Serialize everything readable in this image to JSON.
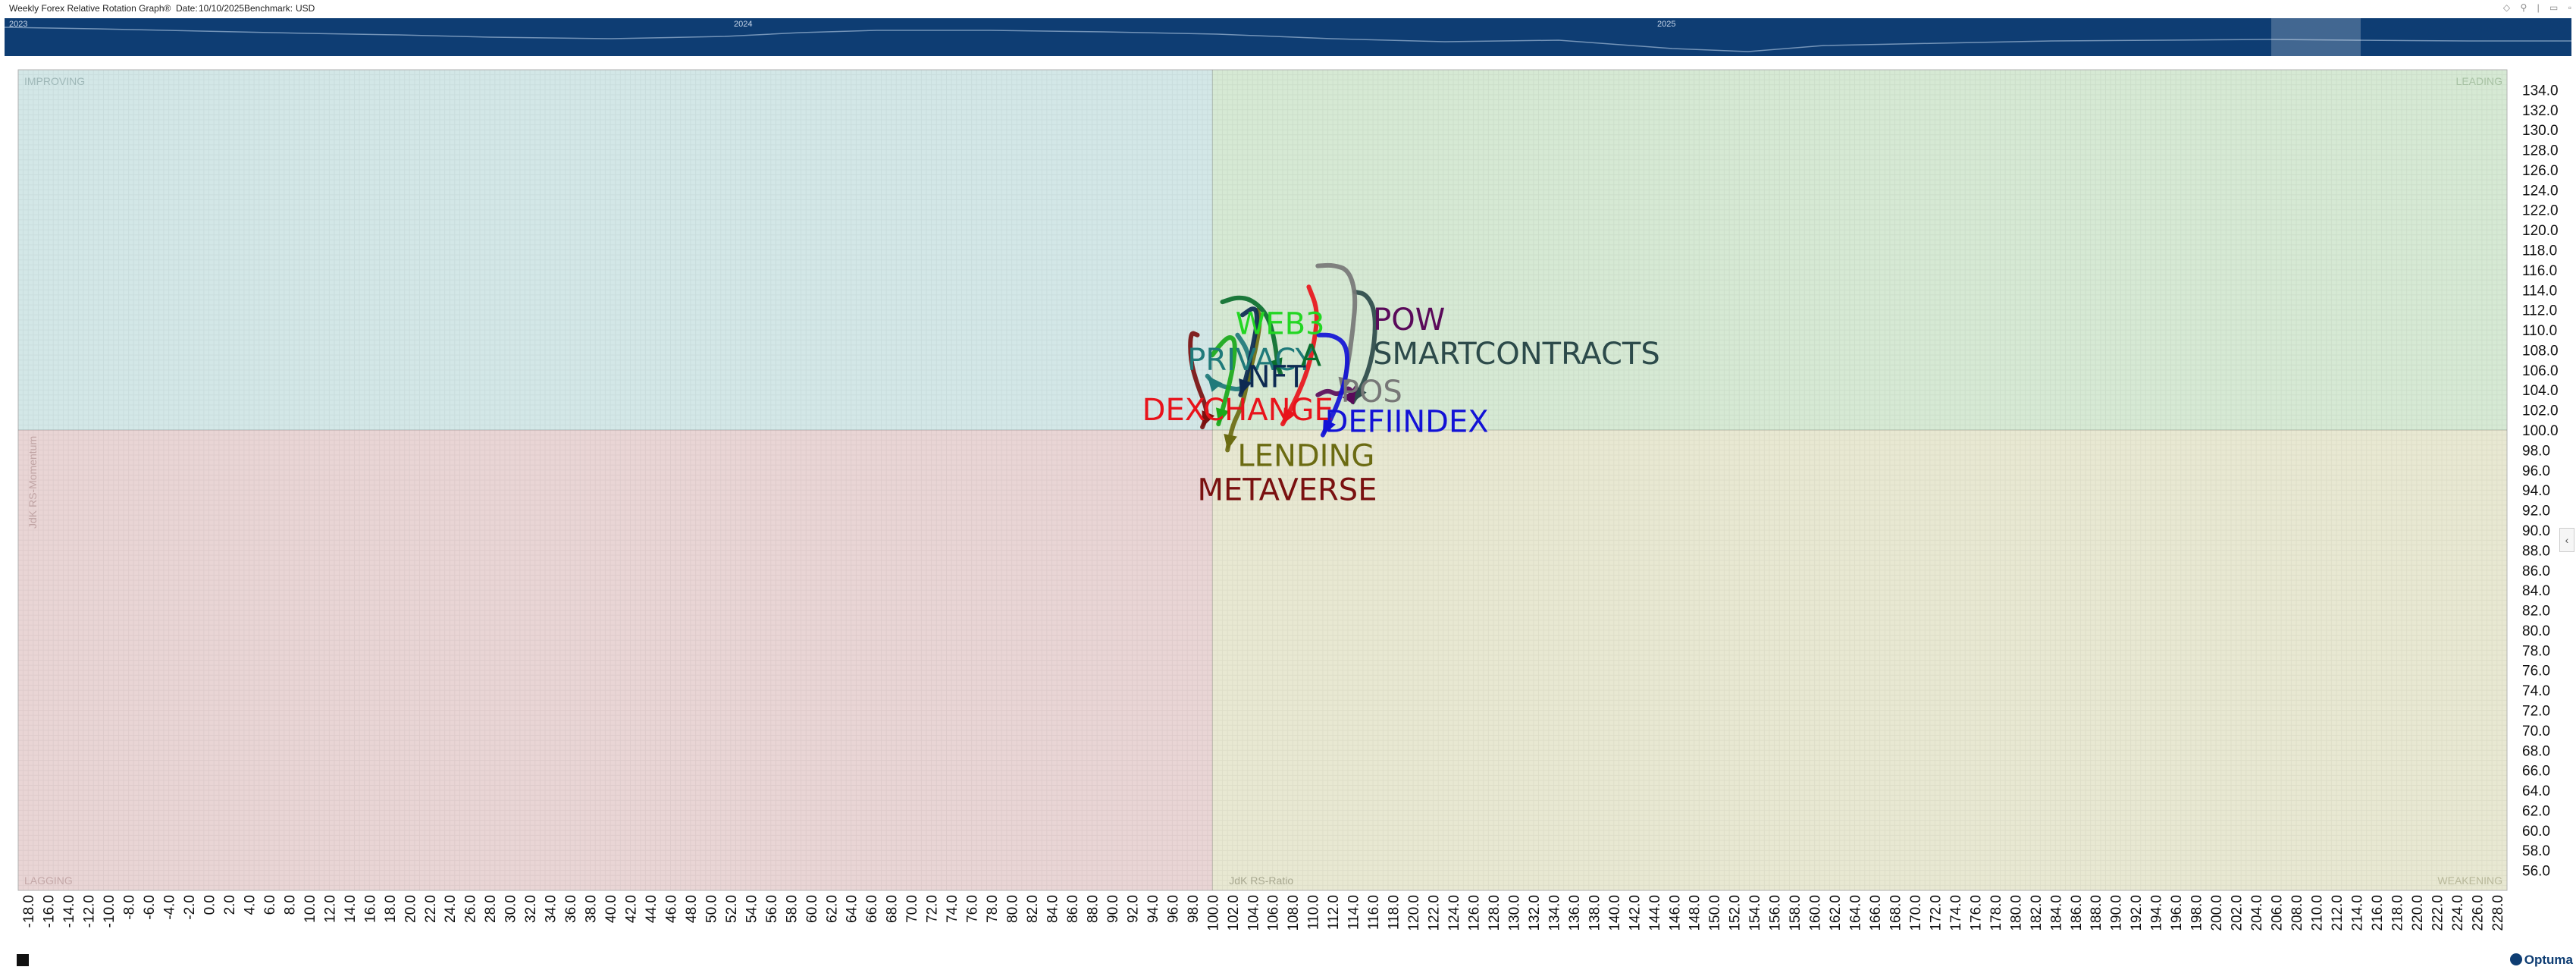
{
  "header": {
    "title": "Weekly Forex Relative Rotation Graph®",
    "date_label": "Date:",
    "date": "10/10/2025",
    "benchmark_label": "Benchmark:",
    "benchmark": "USD"
  },
  "navigator": {
    "years": [
      "2023",
      "2024",
      "2025"
    ]
  },
  "quadrants": {
    "improving": "IMPROVING",
    "leading": "LEADING",
    "lagging": "LAGGING",
    "weakening": "WEAKENING",
    "colors": {
      "improving": "#d3e7e7",
      "leading": "#d6e9d4",
      "lagging": "#e9d5d5",
      "weakening": "#e8e8d2"
    }
  },
  "brand": "Optuma",
  "chart_data": {
    "type": "scatter",
    "subtype": "relative-rotation-graph",
    "xlabel": "JdK RS-Ratio",
    "ylabel": "JdK RS-Momentum",
    "xlim": [
      -19,
      229
    ],
    "ylim": [
      54,
      136
    ],
    "center": [
      100,
      100
    ],
    "x_ticks_step": 2,
    "y_ticks_step": 2,
    "grid": true,
    "series": [
      {
        "name": "PRIVACY",
        "color": "#1f7a7a",
        "x": [
          102.5,
          103.5,
          104.0,
          103.0,
          101.5,
          100.0,
          99.5
        ],
        "y": [
          109.5,
          108.0,
          105.5,
          104.0,
          104.2,
          104.8,
          105.4
        ]
      },
      {
        "name": "DEXCHANGE",
        "color": "#e8131b",
        "x": [
          109.6,
          110.5,
          110.2,
          109.5,
          108.5,
          107.5,
          107.0
        ],
        "y": [
          114.3,
          112.0,
          109.0,
          106.0,
          103.5,
          101.5,
          100.6
        ]
      },
      {
        "name": "METAVERSE",
        "color": "#7a1010",
        "x": [
          98.5,
          97.8,
          97.8,
          98.5,
          99.2,
          99.5,
          99.0
        ],
        "y": [
          109.5,
          109.8,
          107.0,
          104.5,
          102.8,
          101.5,
          100.3
        ]
      },
      {
        "name": "LENDING",
        "color": "#6b6b12",
        "x": [
          104.5,
          104.8,
          104.3,
          103.5,
          103.0,
          102.0,
          101.5
        ],
        "y": [
          112.0,
          111.0,
          108.0,
          105.0,
          102.5,
          100.5,
          98.0
        ]
      },
      {
        "name": "WEB3",
        "color": "#1aa81a",
        "x": [
          100.0,
          101.0,
          101.8,
          102.3,
          102.1,
          101.5,
          100.6
        ],
        "y": [
          107.5,
          108.8,
          109.4,
          108.8,
          106.5,
          103.8,
          100.6
        ]
      },
      {
        "name": "NFT",
        "color": "#0d2a52",
        "x": [
          103.0,
          104.3,
          104.5,
          103.9,
          103.4,
          102.8
        ],
        "y": [
          111.5,
          112.4,
          110.8,
          107.8,
          105.3,
          103.5
        ]
      },
      {
        "name": "A",
        "color": "#0b6e2e",
        "x": [
          101.0,
          102.5,
          104.0,
          105.5,
          106.2,
          106.5,
          106.8
        ],
        "y": [
          112.8,
          113.3,
          113.0,
          111.5,
          109.0,
          106.5,
          105.6
        ]
      },
      {
        "name": "SMARTCONTRACTS",
        "color": "#2c4a4a",
        "x": [
          114.2,
          115.3,
          116.2,
          116.2,
          115.6,
          114.6,
          114.0
        ],
        "y": [
          113.8,
          113.6,
          112.0,
          109.0,
          106.0,
          103.8,
          102.8
        ]
      },
      {
        "name": "POS",
        "color": "#777777",
        "x": [
          110.5,
          112.0,
          113.6,
          114.3,
          114.0,
          113.5,
          112.9
        ],
        "y": [
          116.4,
          116.5,
          116.0,
          113.5,
          110.0,
          106.5,
          103.7
        ]
      },
      {
        "name": "POW",
        "color": "#5a0a5a",
        "x": [
          110.5,
          111.5,
          112.4,
          113.2,
          113.6,
          114.0,
          114.3
        ],
        "y": [
          103.5,
          104.0,
          103.5,
          104.0,
          104.2,
          103.7,
          104.2
        ]
      },
      {
        "name": "DEFIINDEX",
        "color": "#1212d6",
        "x": [
          110.6,
          112.0,
          113.3,
          113.5,
          113.0,
          112.0,
          111.0
        ],
        "y": [
          109.5,
          109.5,
          108.6,
          106.5,
          104.0,
          101.5,
          99.5
        ]
      }
    ],
    "labels": [
      {
        "name": "PRIVACY",
        "color": "#1f7a7a",
        "x": 97.5,
        "y": 106.0
      },
      {
        "name": "DEXCHANGE",
        "color": "#e8131b",
        "x": 93.0,
        "y": 101.0
      },
      {
        "name": "METAVERSE",
        "color": "#7a1010",
        "x": 98.5,
        "y": 93.0
      },
      {
        "name": "LENDING",
        "color": "#6b6b12",
        "x": 102.5,
        "y": 96.4
      },
      {
        "name": "WEB3",
        "color": "#23d623",
        "x": 102.3,
        "y": 109.6
      },
      {
        "name": "NFT",
        "color": "#0d2a52",
        "x": 103.5,
        "y": 104.3
      },
      {
        "name": "A",
        "color": "#0b6e2e",
        "x": 108.8,
        "y": 106.4
      },
      {
        "name": "SMARTCONTRACTS",
        "color": "#2c4a4a",
        "x": 116.0,
        "y": 106.6
      },
      {
        "name": "POS",
        "color": "#777777",
        "x": 112.8,
        "y": 102.8
      },
      {
        "name": "POW",
        "color": "#5a0a5a",
        "x": 116.0,
        "y": 110.0
      },
      {
        "name": "DEFIINDEX",
        "color": "#1212d6",
        "x": 111.2,
        "y": 99.8
      }
    ]
  }
}
